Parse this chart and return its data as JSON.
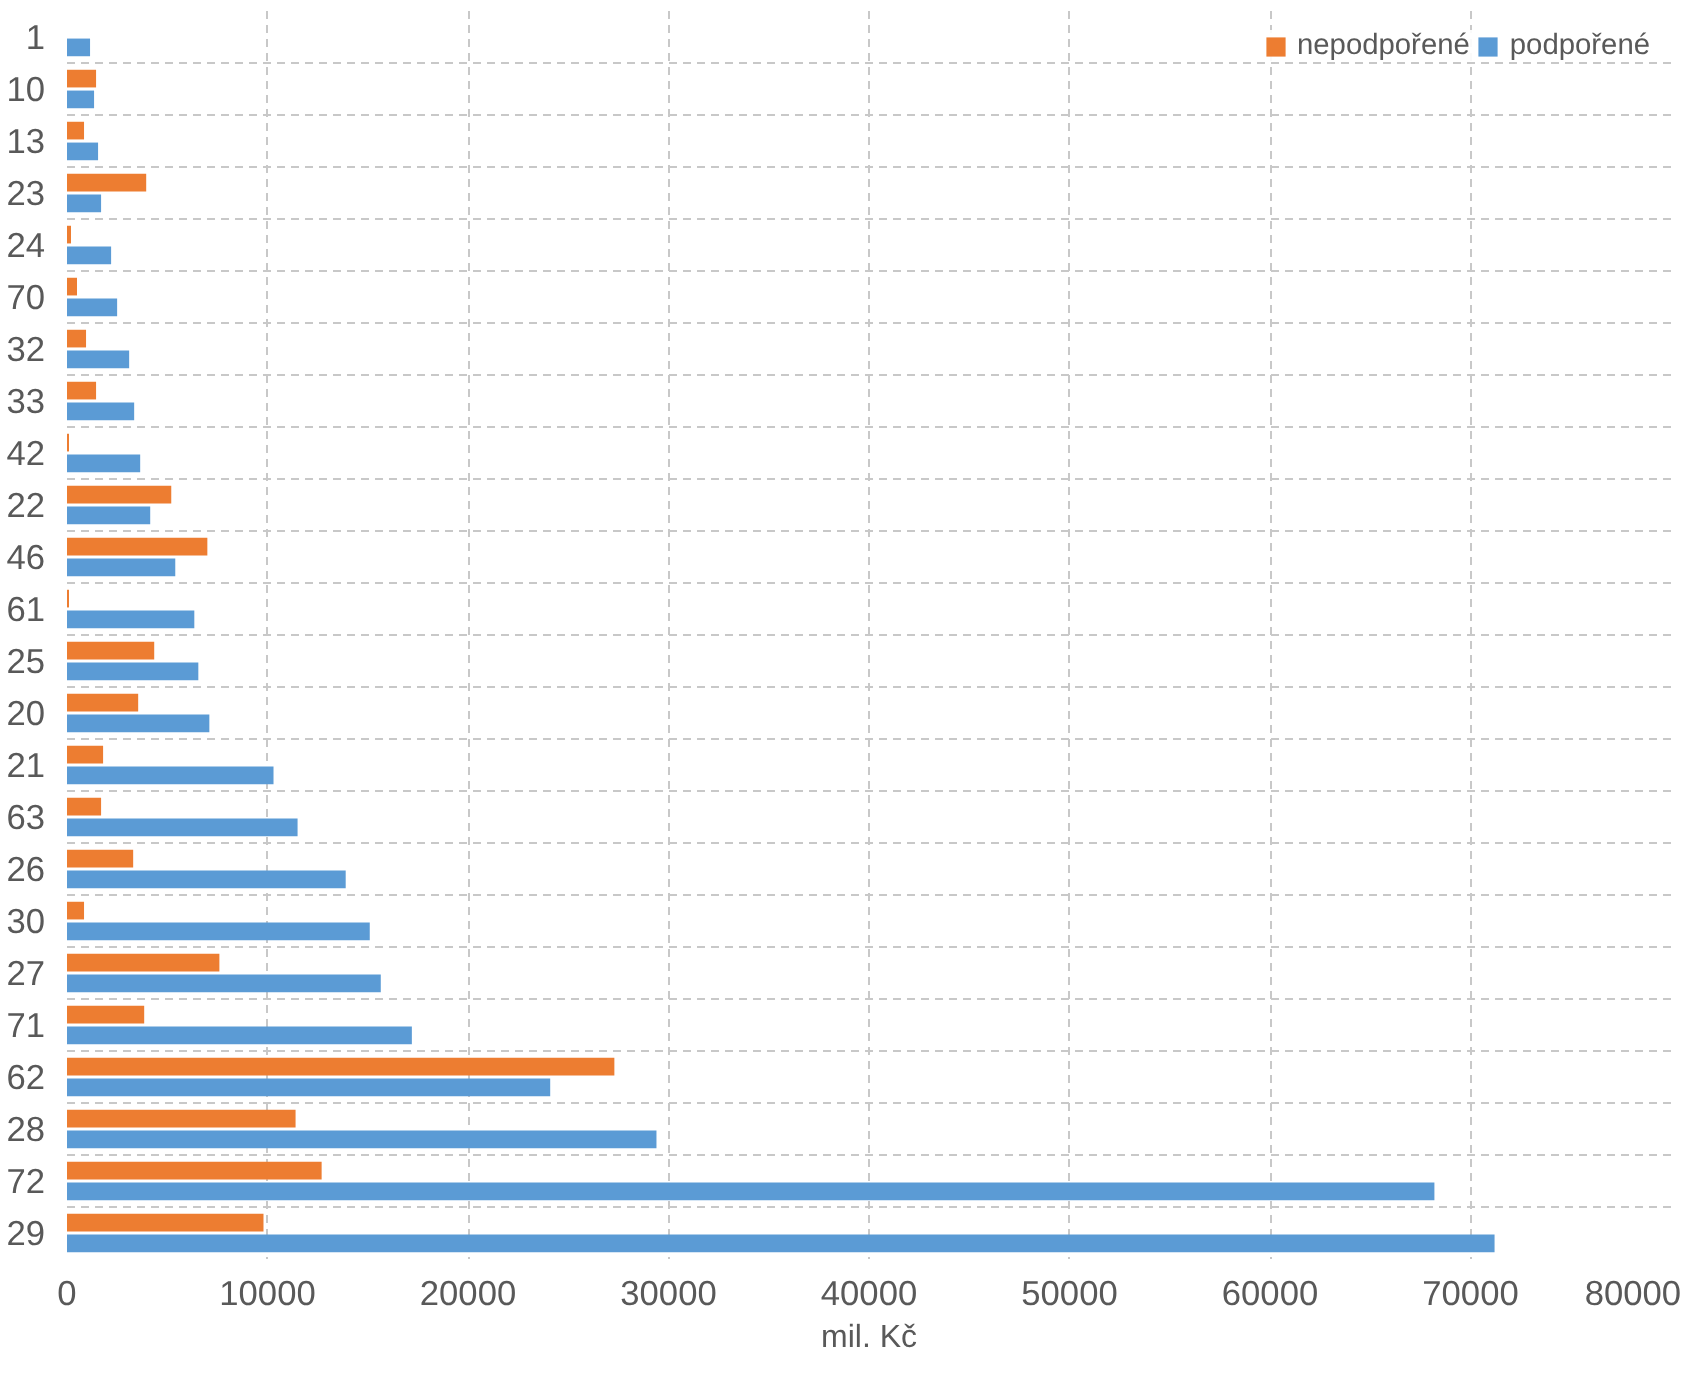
{
  "chart_data": {
    "type": "bar",
    "orientation": "horizontal",
    "xlabel": "mil. Kč",
    "categories": [
      "1",
      "10",
      "13",
      "23",
      "24",
      "70",
      "32",
      "33",
      "42",
      "22",
      "46",
      "61",
      "25",
      "20",
      "21",
      "63",
      "26",
      "30",
      "27",
      "71",
      "62",
      "28",
      "72",
      "29"
    ],
    "series": [
      {
        "name": "nepodpořené",
        "color": "#ed7d31",
        "values": [
          0,
          1450,
          850,
          3950,
          200,
          500,
          950,
          1450,
          100,
          5200,
          7000,
          100,
          4350,
          3550,
          1800,
          1700,
          3300,
          850,
          7600,
          3850,
          27300,
          11400,
          12700,
          9800
        ]
      },
      {
        "name": "podpořené",
        "color": "#5b9bd5",
        "values": [
          1150,
          1350,
          1550,
          1700,
          2200,
          2500,
          3100,
          3350,
          3650,
          4150,
          5400,
          6350,
          6550,
          7100,
          10300,
          11500,
          13900,
          15100,
          15650,
          17200,
          24100,
          29400,
          68200,
          71200
        ]
      }
    ],
    "xlim": [
      0,
      80000
    ],
    "xticks": [
      0,
      10000,
      20000,
      30000,
      40000,
      50000,
      60000,
      70000,
      80000
    ],
    "grid": true,
    "legend": "top right"
  }
}
